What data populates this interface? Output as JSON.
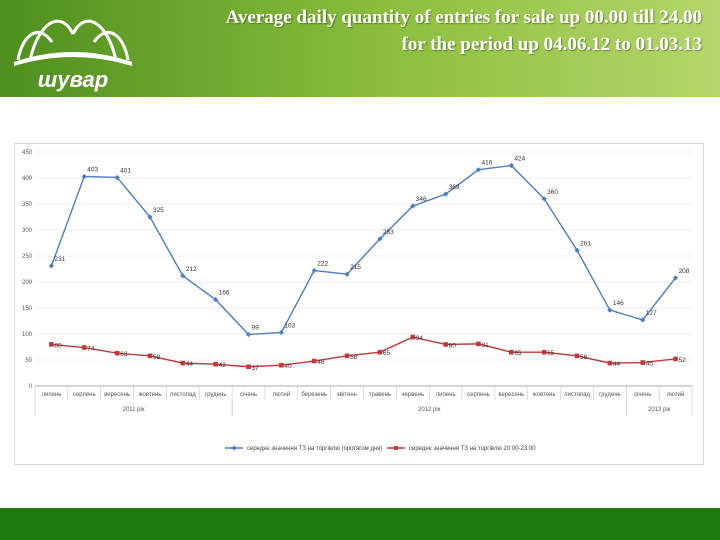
{
  "header": {
    "title_line1": "Average daily quantity of entries for sale up 00.00 till 24.00",
    "title_line2": "for the period up 04.06.12 to 01.03.13",
    "logo_text": "шувар"
  },
  "colors": {
    "header_green": "#6aa52e",
    "footer_green": "#1f7a0f",
    "series1": "#4a7fc1",
    "series2": "#c0393b"
  },
  "chart_data": {
    "type": "line",
    "categories": [
      "липень",
      "серпень",
      "вересень",
      "жовтень",
      "листопад",
      "грудень",
      "січень",
      "лютий",
      "березень",
      "квітень",
      "травень",
      "червень",
      "липень",
      "серпень",
      "вересень",
      "жовтень",
      "листопад",
      "грудень",
      "січень",
      "лютий"
    ],
    "year_groups": [
      {
        "label": "2011 рік",
        "start": 0,
        "end": 5
      },
      {
        "label": "2012 рік",
        "start": 6,
        "end": 17
      },
      {
        "label": "2013 рік",
        "start": 18,
        "end": 19
      }
    ],
    "ylim": [
      0,
      450
    ],
    "yticks": [
      0,
      50,
      100,
      150,
      200,
      250,
      300,
      350,
      400,
      450
    ],
    "grid": true,
    "legend": "bottom",
    "series": [
      {
        "name": "середнє значення ТЗ на торгівлю (протягом дня)",
        "color": "#4a7fc1",
        "marker": "diamond",
        "values": [
          231,
          403,
          401,
          325,
          212,
          166,
          99,
          103,
          222,
          215,
          283,
          346,
          369,
          416,
          424,
          360,
          261,
          146,
          127,
          208
        ],
        "labels": [
          "231",
          "403",
          "401",
          "325",
          "212",
          "166",
          "99",
          "103",
          "222",
          "215",
          "283",
          "346",
          "369",
          "416",
          "424",
          "360",
          "261",
          "146",
          "127",
          "208"
        ]
      },
      {
        "name": "середнє значення ТЗ на торгівлю 20:00-23:00",
        "color": "#c0393b",
        "marker": "square",
        "values": [
          80,
          74,
          63,
          58,
          44,
          42,
          37,
          40,
          48,
          58,
          65,
          94,
          80,
          81,
          65,
          65,
          58,
          44,
          45,
          52
        ],
        "labels": [
          "80",
          "74",
          "63",
          "58",
          "44",
          "42",
          "37",
          "40",
          "48",
          "58",
          "65",
          "94",
          "80",
          "81",
          "65",
          "65",
          "58",
          "44",
          "45",
          "52"
        ]
      }
    ]
  }
}
